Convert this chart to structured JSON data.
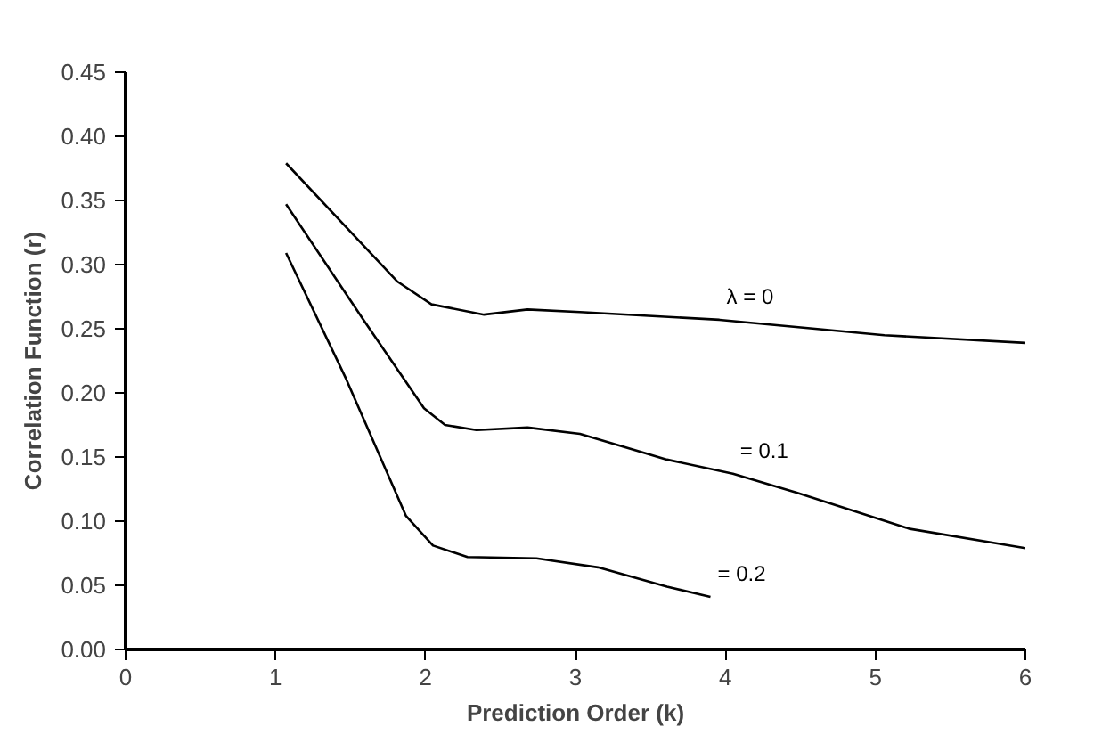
{
  "chart_data": {
    "type": "line",
    "xlabel": "Prediction Order (k)",
    "ylabel": "Correlation Function (r)",
    "xlim": [
      0,
      6
    ],
    "xticks": [
      0,
      1,
      2,
      3,
      4,
      5,
      6
    ],
    "ylim": [
      0,
      0.45
    ],
    "yticks": [
      {
        "value": 0,
        "label": "0.00"
      },
      {
        "value": 0.05,
        "label": "0.05"
      },
      {
        "value": 0.1,
        "label": "0.10"
      },
      {
        "value": 0.15,
        "label": "0.15"
      },
      {
        "value": 0.2,
        "label": "0.20"
      },
      {
        "value": 0.25,
        "label": "0.25"
      },
      {
        "value": 0.3,
        "label": "0.30"
      },
      {
        "value": 0.35,
        "label": "0.35"
      },
      {
        "value": 0.4,
        "label": "0.40"
      },
      {
        "value": 0.45,
        "label": "0.45"
      }
    ],
    "grid": false,
    "marker": "none",
    "line_style": "solid",
    "series": [
      {
        "name": "λ = 0",
        "color": "#000000",
        "x": [
          1.07,
          1.81,
          2.04,
          2.39,
          2.68,
          3.03,
          3.96,
          5.06,
          6.0
        ],
        "values": [
          0.379,
          0.287,
          0.269,
          0.261,
          0.265,
          0.263,
          0.257,
          0.245,
          0.239
        ]
      },
      {
        "name": "= 0.1",
        "color": "#000000",
        "x": [
          1.07,
          1.58,
          1.99,
          2.13,
          2.34,
          2.68,
          3.03,
          3.61,
          4.05,
          4.48,
          5.23,
          6.0
        ],
        "values": [
          0.347,
          0.258,
          0.188,
          0.175,
          0.171,
          0.173,
          0.168,
          0.148,
          0.137,
          0.122,
          0.094,
          0.079
        ]
      },
      {
        "name": "= 0.2",
        "color": "#000000",
        "x": [
          1.07,
          1.47,
          1.87,
          2.05,
          2.28,
          2.74,
          3.15,
          3.61,
          3.9
        ],
        "values": [
          0.309,
          0.211,
          0.104,
          0.081,
          0.072,
          0.071,
          0.064,
          0.049,
          0.041
        ]
      }
    ]
  }
}
